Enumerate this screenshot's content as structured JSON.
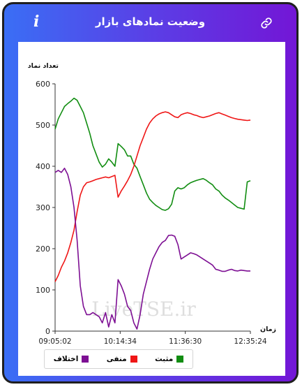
{
  "header": {
    "title": "وضعیت نمادهای بازار",
    "info_icon": "info-icon",
    "link_icon": "link-icon"
  },
  "colors": {
    "positive": "#118d11",
    "negative": "#ef1616",
    "difference": "#7d0f93"
  },
  "watermark": "LiveTSE.ir",
  "chart_data": {
    "type": "line",
    "ylabel": "تعداد نماد",
    "xlabel": "زمان",
    "ylim": [
      0,
      600
    ],
    "yticks": [
      0,
      100,
      200,
      300,
      400,
      500,
      600
    ],
    "xticks": [
      "09:05:02",
      "10:14:34",
      "11:36:30",
      "12:35:24"
    ],
    "x": [
      0,
      5,
      10,
      15,
      20,
      25,
      30,
      35,
      40,
      45,
      50,
      55,
      60,
      65,
      70,
      75,
      80,
      85,
      90,
      95,
      100,
      105,
      110,
      115,
      120,
      125,
      130,
      135,
      140,
      145,
      150,
      155,
      160,
      165,
      170,
      175,
      180,
      185,
      190,
      195,
      200,
      205,
      210,
      215,
      220,
      225,
      230,
      235,
      240,
      245,
      250,
      255,
      260,
      265,
      270,
      275,
      280,
      285,
      290,
      295,
      300,
      305,
      310
    ],
    "series": [
      {
        "name": "مثبت",
        "key": "positive",
        "values": [
          490,
          515,
          530,
          545,
          552,
          558,
          565,
          560,
          545,
          530,
          505,
          480,
          450,
          430,
          410,
          398,
          405,
          418,
          410,
          400,
          455,
          448,
          440,
          425,
          425,
          405,
          395,
          375,
          355,
          335,
          320,
          312,
          305,
          300,
          295,
          293,
          297,
          308,
          340,
          348,
          345,
          348,
          355,
          360,
          363,
          366,
          368,
          370,
          366,
          360,
          355,
          345,
          340,
          330,
          323,
          318,
          312,
          306,
          300,
          298,
          296,
          362,
          365
        ]
      },
      {
        "name": "منفی",
        "key": "negative",
        "values": [
          120,
          135,
          155,
          170,
          190,
          215,
          245,
          290,
          330,
          350,
          360,
          362,
          365,
          368,
          370,
          372,
          374,
          372,
          375,
          378,
          325,
          340,
          352,
          365,
          380,
          400,
          425,
          450,
          470,
          490,
          505,
          515,
          522,
          527,
          530,
          532,
          530,
          525,
          520,
          518,
          525,
          528,
          530,
          528,
          525,
          523,
          520,
          518,
          520,
          522,
          525,
          528,
          530,
          527,
          524,
          521,
          518,
          516,
          514,
          513,
          512,
          511,
          512
        ]
      },
      {
        "name": "اختلاف",
        "key": "difference",
        "values": [
          385,
          390,
          385,
          395,
          380,
          350,
          300,
          220,
          110,
          60,
          40,
          40,
          45,
          40,
          35,
          20,
          45,
          10,
          40,
          20,
          125,
          110,
          90,
          60,
          50,
          20,
          5,
          40,
          90,
          120,
          150,
          175,
          190,
          205,
          215,
          220,
          232,
          233,
          230,
          210,
          175,
          180,
          185,
          190,
          188,
          185,
          180,
          175,
          170,
          165,
          160,
          150,
          148,
          145,
          145,
          148,
          150,
          147,
          146,
          148,
          147,
          146,
          146
        ]
      }
    ]
  }
}
